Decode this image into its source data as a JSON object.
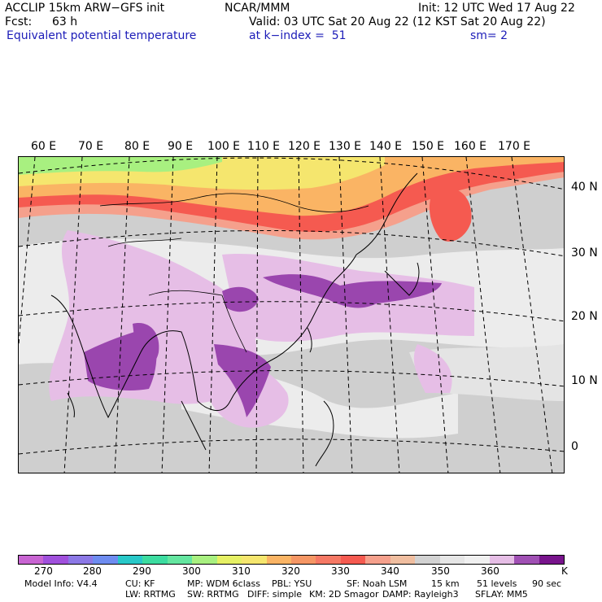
{
  "header": {
    "model": "ACCLIP 15km ARW−GFS init",
    "org": "NCAR/MMM",
    "init": "Init: 12 UTC Wed 17 Aug 22",
    "fcst_label": "Fcst:",
    "fcst_value": "63 h",
    "valid": "Valid: 03 UTC Sat 20 Aug 22 (12 KST Sat 20 Aug 22)",
    "field": "Equivalent potential temperature",
    "level": "at k−index =  51",
    "smoothing": "sm= 2"
  },
  "map": {
    "lon_labels": [
      "60 E",
      "70 E",
      "80 E",
      "90 E",
      "100 E",
      "110 E",
      "120 E",
      "130 E",
      "140 E",
      "150 E",
      "160 E",
      "170 E"
    ],
    "lat_labels": [
      "40 N",
      "30 N",
      "20 N",
      "10 N",
      "0"
    ]
  },
  "colorbar": {
    "colors": [
      "#c864d2",
      "#a050dc",
      "#8c78e6",
      "#6e8cf0",
      "#28c8c8",
      "#3cdca0",
      "#64e6a0",
      "#a8f080",
      "#e6f064",
      "#f5e66e",
      "#fab464",
      "#f59664",
      "#f57864",
      "#f55a50",
      "#f5a08c",
      "#f0bea0",
      "#d2d2d2",
      "#e6e6e6",
      "#f0f0f0",
      "#e6bee6",
      "#a050b4",
      "#78148c"
    ],
    "labels": [
      "270",
      "280",
      "290",
      "300",
      "310",
      "320",
      "330",
      "340",
      "350",
      "360"
    ],
    "units": "K"
  },
  "footer": {
    "line1": [
      "Model Info: V4.4",
      "CU: KF",
      "MP: WDM 6class",
      "PBL: YSU",
      "SF: Noah LSM",
      "15 km",
      "51 levels",
      "90 sec"
    ],
    "line2": [
      "LW: RRTMG",
      "SW: RRTMG",
      "DIFF: simple",
      "KM: 2D Smagor",
      "DAMP: Rayleigh3",
      "SFLAY: MM5"
    ]
  }
}
